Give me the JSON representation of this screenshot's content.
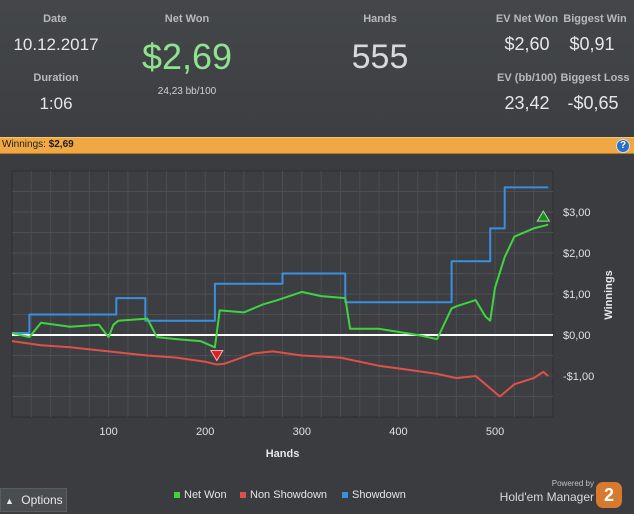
{
  "stats": {
    "date_label": "Date",
    "date_value": "10.12.2017",
    "duration_label": "Duration",
    "duration_value": "1:06",
    "net_won_label": "Net Won",
    "net_won_value": "$2,69",
    "net_won_bb": "24,23 bb/100",
    "hands_label": "Hands",
    "hands_value": "555",
    "ev_net_won_label": "EV Net Won",
    "ev_net_won_value": "$2,60",
    "biggest_win_label": "Biggest Win",
    "biggest_win_value": "$0,91",
    "ev_bb_label": "EV (bb/100)",
    "ev_bb_value": "23,42",
    "biggest_loss_label": "Biggest Loss",
    "biggest_loss_value": "-$0,65"
  },
  "winbar": {
    "label": "Winnings:",
    "value": "$2,69",
    "help_icon": "help-icon"
  },
  "colors": {
    "net_won": "#3fd43f",
    "non_showdown": "#e0504a",
    "showdown": "#3a90e0",
    "net_won_text": "#8fe38f",
    "accent": "#f0a844"
  },
  "chart_data": {
    "type": "line",
    "xlabel": "Hands",
    "ylabel": "Winnings",
    "xlim": [
      0,
      560
    ],
    "ylim": [
      -2.0,
      4.0
    ],
    "x_ticks": [
      100,
      200,
      300,
      400,
      500
    ],
    "y_ticks": [
      {
        "value": 3.0,
        "label": "$3,00"
      },
      {
        "value": 2.0,
        "label": "$2,00"
      },
      {
        "value": 1.0,
        "label": "$1,00"
      },
      {
        "value": 0.0,
        "label": "$0,00"
      },
      {
        "value": -1.0,
        "label": "-$1,00"
      }
    ],
    "series": [
      {
        "name": "Showdown",
        "x": [
          0,
          18,
          18,
          100,
          100,
          108,
          108,
          138,
          138,
          205,
          205,
          210,
          210,
          280,
          280,
          345,
          345,
          455,
          455,
          495,
          495,
          510,
          510,
          530,
          530,
          555
        ],
        "y": [
          0.05,
          0.05,
          0.5,
          0.5,
          0.5,
          0.5,
          0.9,
          0.9,
          0.35,
          0.35,
          0.35,
          0.35,
          1.25,
          1.25,
          1.5,
          1.5,
          0.8,
          0.8,
          1.8,
          1.8,
          2.6,
          2.6,
          3.6,
          3.6,
          3.6,
          3.6
        ]
      },
      {
        "name": "Net Won",
        "x": [
          0,
          18,
          30,
          60,
          90,
          100,
          105,
          110,
          140,
          150,
          170,
          195,
          210,
          215,
          240,
          260,
          275,
          300,
          320,
          345,
          350,
          380,
          420,
          440,
          455,
          460,
          480,
          490,
          495,
          500,
          510,
          520,
          540,
          555
        ],
        "y": [
          0.05,
          -0.05,
          0.3,
          0.2,
          0.25,
          -0.05,
          0.25,
          0.35,
          0.4,
          -0.05,
          -0.1,
          -0.15,
          -0.3,
          0.6,
          0.55,
          0.75,
          0.85,
          1.05,
          0.95,
          0.9,
          0.15,
          0.15,
          0.0,
          -0.1,
          0.65,
          0.7,
          0.85,
          0.45,
          0.35,
          1.15,
          1.9,
          2.4,
          2.6,
          2.69
        ]
      },
      {
        "name": "Non Showdown",
        "x": [
          0,
          30,
          60,
          100,
          140,
          170,
          200,
          212,
          220,
          250,
          270,
          300,
          340,
          380,
          410,
          440,
          460,
          480,
          490,
          500,
          505,
          520,
          540,
          550,
          555
        ],
        "y": [
          -0.15,
          -0.25,
          -0.3,
          -0.4,
          -0.5,
          -0.55,
          -0.65,
          -0.72,
          -0.7,
          -0.45,
          -0.4,
          -0.5,
          -0.55,
          -0.75,
          -0.85,
          -0.95,
          -1.05,
          -1.0,
          -1.2,
          -1.4,
          -1.5,
          -1.2,
          -1.05,
          -0.9,
          -1.0
        ]
      }
    ],
    "markers": [
      {
        "type": "min",
        "x": 212,
        "y": -0.5
      },
      {
        "type": "max",
        "x": 550,
        "y": 2.9
      }
    ],
    "grid": true
  },
  "footer": {
    "options_label": "Options",
    "options_chevron": "chevron-up-icon",
    "legend": [
      "Net Won",
      "Non Showdown",
      "Showdown"
    ],
    "powered_by": "Powered by",
    "brand": "Hold'em Manager",
    "brand_logo": "2"
  }
}
